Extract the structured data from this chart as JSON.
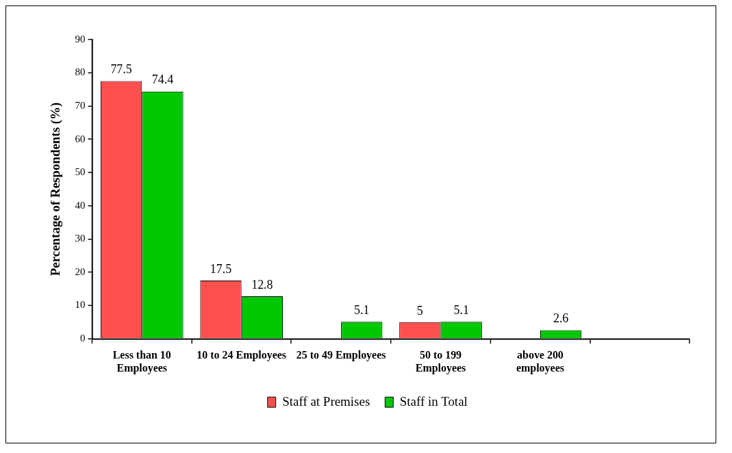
{
  "chart_data": {
    "type": "bar",
    "ylabel": "Percentage of Respondents (%)",
    "categories": [
      "Less than 10 Employees",
      "10 to 24 Employees",
      "25 to 49 Employees",
      "50 to 199 Employees",
      "above 200 employees",
      null
    ],
    "series": [
      {
        "name": "Staff at Premises",
        "color": "#ff5050",
        "values": [
          77.5,
          17.5,
          null,
          5,
          null,
          null
        ]
      },
      {
        "name": "Staff in Total",
        "color": "#00c800",
        "values": [
          74.4,
          12.8,
          5.1,
          5.1,
          2.6,
          null
        ]
      }
    ],
    "ylim": [
      0,
      90
    ],
    "yticks": [
      0,
      10,
      20,
      30,
      40,
      50,
      60,
      70,
      80,
      90
    ],
    "grid": false,
    "legend": "bottom",
    "data_labels": true
  }
}
